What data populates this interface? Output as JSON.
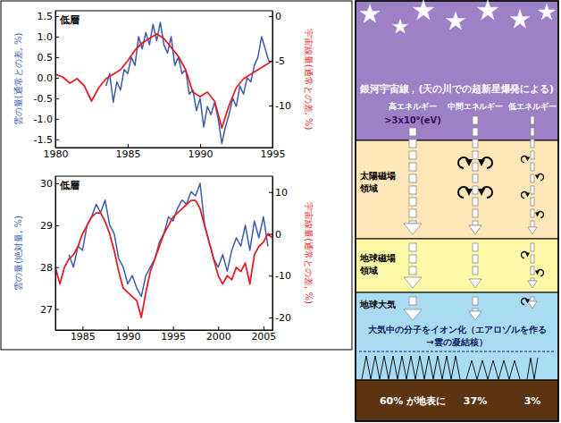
{
  "chart_data": [
    {
      "type": "line",
      "title": "低層",
      "ylabel": "雲の量(通常との差, %)",
      "y2label": "宇宙線量(通常との差, %)",
      "xlim": [
        1980,
        1995
      ],
      "xticks": [
        1980,
        1985,
        1990,
        1995
      ],
      "ylim": [
        -1.7,
        1.63
      ],
      "yticks": [
        -1.5,
        {
          "value": -1,
          "label": "-1.0"
        },
        -0.5,
        {
          "value": 0,
          "label": "0.0"
        },
        0.5,
        {
          "value": 1,
          "label": "1.0"
        },
        1.5
      ],
      "y2lim": [
        -14.7,
        0.6
      ],
      "y2ticks": [
        -10,
        -5,
        0
      ],
      "series": [
        {
          "color": "#3b5bab",
          "x": [
            1983.5,
            1983.75,
            1984,
            1984.25,
            1984.5,
            1984.75,
            1985,
            1985.25,
            1985.5,
            1985.75,
            1986,
            1986.25,
            1986.5,
            1986.75,
            1987,
            1987.25,
            1987.5,
            1987.75,
            1988,
            1988.25,
            1988.5,
            1988.75,
            1989,
            1989.25,
            1989.5,
            1989.75,
            1990,
            1990.25,
            1990.5,
            1990.75,
            1991,
            1991.25,
            1991.5,
            1991.75,
            1992,
            1992.25,
            1992.5,
            1992.75,
            1993,
            1993.25,
            1993.5,
            1993.75,
            1994,
            1994.25,
            1994.5,
            1994.75
          ],
          "values": [
            -0.2,
            0.1,
            -0.6,
            -0.1,
            -0.3,
            0.2,
            0.1,
            0.5,
            0.3,
            1.0,
            0.7,
            1.1,
            0.8,
            1.3,
            0.9,
            1.35,
            0.8,
            0.6,
            1.0,
            0.3,
            0.5,
            0.1,
            0.2,
            -0.4,
            -0.3,
            -0.8,
            -0.5,
            -1.2,
            -0.7,
            -0.9,
            -0.6,
            -1.0,
            -1.6,
            -1.2,
            -0.9,
            -0.5,
            -0.7,
            -0.2,
            -0.4,
            0.0,
            -0.1,
            0.3,
            0.5,
            1.0,
            0.7,
            0.4
          ]
        },
        {
          "color": "#e41e26",
          "axis": "y2",
          "x": [
            1980,
            1980.5,
            1981,
            1981.5,
            1982,
            1982.5,
            1983,
            1983.5,
            1984,
            1984.5,
            1985,
            1985.5,
            1986,
            1986.5,
            1987,
            1987.5,
            1988,
            1988.5,
            1989,
            1989.5,
            1990,
            1990.5,
            1991,
            1991.5,
            1992,
            1992.5,
            1993,
            1993.5,
            1994,
            1994.5,
            1995
          ],
          "values": [
            -6.5,
            -6.8,
            -7.5,
            -7.0,
            -7.8,
            -9.5,
            -8.0,
            -7.0,
            -6.5,
            -6.0,
            -5.0,
            -3.8,
            -3.0,
            -2.5,
            -2.0,
            -2.5,
            -3.5,
            -4.5,
            -6.0,
            -8.5,
            -9.0,
            -8.5,
            -9.5,
            -12.5,
            -10.0,
            -8.0,
            -7.0,
            -6.5,
            -6.0,
            -5.5,
            -5.0
          ]
        }
      ]
    },
    {
      "type": "line",
      "title": "低層",
      "ylabel": "雲の量(絶対量, %)",
      "y2label": "宇宙線量(通常との差, %)",
      "xlim": [
        1982,
        2006
      ],
      "xticks": [
        1985,
        1990,
        1995,
        2000,
        2005
      ],
      "ylim": [
        26.5,
        30.17
      ],
      "yticks": [
        27,
        28,
        29,
        30
      ],
      "y2lim": [
        -23,
        13.8
      ],
      "y2ticks": [
        -20,
        -10,
        0,
        10
      ],
      "series": [
        {
          "color": "#3b5bab",
          "x": [
            1983.5,
            1984,
            1984.5,
            1985,
            1985.5,
            1986,
            1986.5,
            1987,
            1987.5,
            1988,
            1988.5,
            1989,
            1989.5,
            1990,
            1990.5,
            1991,
            1991.5,
            1992,
            1992.5,
            1993,
            1993.5,
            1994,
            1994.5,
            1995,
            1995.5,
            1996,
            1996.5,
            1997,
            1997.5,
            1998,
            1998.5,
            1999,
            1999.5,
            2000,
            2000.5,
            2001,
            2001.5,
            2002,
            2002.5,
            2003,
            2003.5,
            2004,
            2004.5,
            2005,
            2005.5
          ],
          "values": [
            28.3,
            28.0,
            28.5,
            28.4,
            29.0,
            29.2,
            29.5,
            29.3,
            29.6,
            29.0,
            28.8,
            28.2,
            28.0,
            27.6,
            27.8,
            27.5,
            27.3,
            27.8,
            28.0,
            28.2,
            28.6,
            28.8,
            29.2,
            29.1,
            29.4,
            29.6,
            29.5,
            29.8,
            29.7,
            30.0,
            29.0,
            28.6,
            28.2,
            28.0,
            28.3,
            27.9,
            28.4,
            28.7,
            28.5,
            29.0,
            28.4,
            29.1,
            28.7,
            29.2,
            28.5
          ]
        },
        {
          "color": "#e41e26",
          "axis": "y2",
          "x": [
            1982,
            1982.5,
            1983,
            1983.5,
            1984,
            1984.5,
            1985,
            1985.5,
            1986,
            1986.5,
            1987,
            1987.5,
            1988,
            1988.5,
            1989,
            1989.5,
            1990,
            1990.5,
            1991,
            1991.5,
            1992,
            1992.5,
            1993,
            1993.5,
            1994,
            1994.5,
            1995,
            1995.5,
            1996,
            1996.5,
            1997,
            1997.5,
            1998,
            1998.5,
            1999,
            1999.5,
            2000,
            2000.5,
            2001,
            2001.5,
            2002,
            2002.5,
            2003,
            2003.5,
            2004,
            2004.5,
            2005,
            2005.5,
            2006
          ],
          "values": [
            -8,
            -12,
            -8,
            -6,
            -5,
            -3,
            0,
            2,
            4,
            5,
            5,
            3,
            0,
            -4,
            -9,
            -13,
            -14,
            -15,
            -16,
            -20,
            -14,
            -9,
            -6,
            -3,
            0,
            2,
            4,
            5,
            6,
            7,
            8,
            8,
            6,
            2,
            -2,
            -6,
            -10,
            -12,
            -10,
            -11,
            -8,
            -9,
            -7,
            -12,
            -5,
            -3,
            -2,
            0,
            -1
          ]
        }
      ]
    }
  ],
  "diagram": {
    "source_title": "銀河宇宙線，(天の川での超新星爆発による)",
    "columns": [
      {
        "label": "高エネルギー",
        "energy": ">3x10⁹(eV)",
        "ground_share": "60% が地表に"
      },
      {
        "label": "中間エネルギー",
        "ground_share": "37%"
      },
      {
        "label": "低エネルギー",
        "ground_share": "3%"
      }
    ],
    "regions": [
      {
        "label": "太陽磁場領域"
      },
      {
        "label": "地球磁場領域"
      },
      {
        "label": "地球大気"
      }
    ],
    "ionization_note": [
      "大気中の分子をイオン化（エアロゾルを作る",
      "→雲の凝結核）"
    ]
  }
}
